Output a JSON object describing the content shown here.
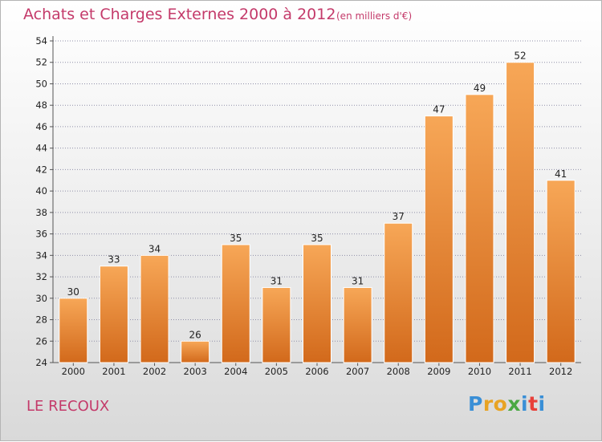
{
  "title": "Achats et Charges Externes 2000 à 2012",
  "subtitle": "(en milliers d'€)",
  "commune": "LE RECOUX",
  "logo": {
    "letters": [
      "P",
      "r",
      "o",
      "x",
      "i",
      "t",
      "i"
    ],
    "colors": [
      "#3a8fd6",
      "#e8a323",
      "#e8a323",
      "#4aa843",
      "#3a8fd6",
      "#e8403a",
      "#3a8fd6"
    ]
  },
  "colors": {
    "title": "#c43a6a",
    "bar_top": "#f7a757",
    "bar_bottom": "#d2691b",
    "grid": "#8f8fa8"
  },
  "chart_data": {
    "type": "bar",
    "title": "Achats et Charges Externes 2000 à 2012",
    "subtitle": "(en milliers d'€)",
    "categories": [
      "2000",
      "2001",
      "2002",
      "2003",
      "2004",
      "2005",
      "2006",
      "2007",
      "2008",
      "2009",
      "2010",
      "2011",
      "2012"
    ],
    "values": [
      30,
      33,
      34,
      26,
      35,
      31,
      35,
      31,
      37,
      47,
      49,
      52,
      41
    ],
    "ylim": [
      24,
      54
    ],
    "yticks": [
      24,
      26,
      28,
      30,
      32,
      34,
      36,
      38,
      40,
      42,
      44,
      46,
      48,
      50,
      52,
      54
    ],
    "grid": true,
    "xlabel": "",
    "ylabel": ""
  }
}
